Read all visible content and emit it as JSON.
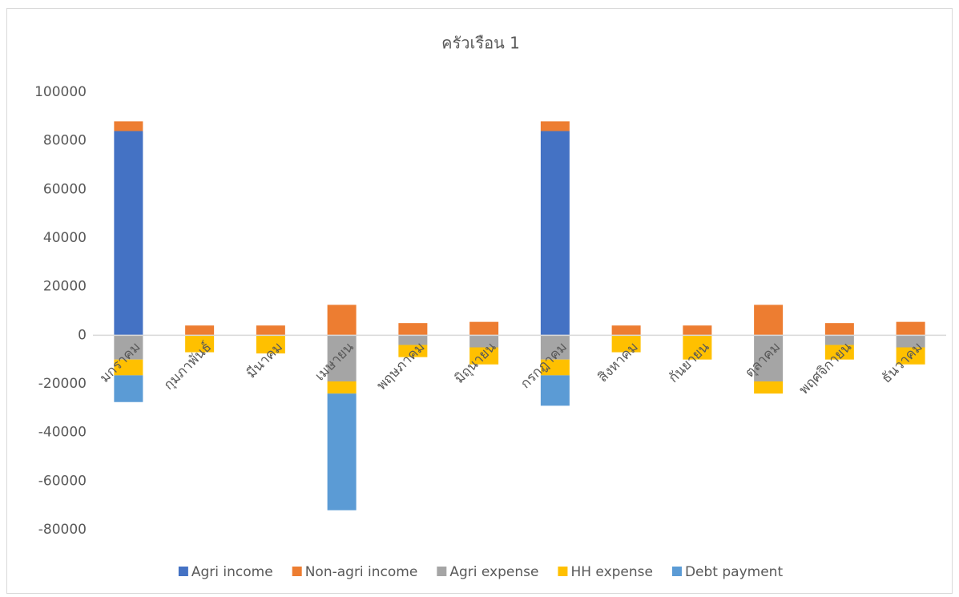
{
  "chart_data": {
    "type": "bar",
    "stacked": true,
    "title": "ครัวเรือน 1",
    "categories": [
      "มกราคม",
      "กุมภาพันธ์",
      "มีนาคม",
      "เมษายน",
      "พฤษภาคม",
      "มิถุนายน",
      "กรกฎาคม",
      "สิงหาคม",
      "กันยายน",
      "ตุลาคม",
      "พฤศจิกายน",
      "ธันวาคม"
    ],
    "series": [
      {
        "name": "Agri income",
        "color": "#4472c4",
        "values": [
          84000,
          0,
          0,
          0,
          0,
          0,
          84000,
          0,
          0,
          0,
          0,
          0
        ]
      },
      {
        "name": "Non-agri income",
        "color": "#ed7d31",
        "values": [
          4000,
          4000,
          4000,
          12500,
          5000,
          5500,
          4000,
          4000,
          4000,
          12500,
          5000,
          5500
        ]
      },
      {
        "name": "Agri expense",
        "color": "#a5a5a5",
        "values": [
          -10000,
          0,
          0,
          -19000,
          -4000,
          -5000,
          -10000,
          0,
          0,
          -19000,
          -4000,
          -5000
        ]
      },
      {
        "name": "HH expense",
        "color": "#ffc000",
        "values": [
          -6500,
          -7000,
          -7500,
          -5000,
          -5000,
          -7000,
          -6500,
          -7000,
          -10000,
          -5000,
          -6000,
          -7000
        ]
      },
      {
        "name": "Debt payment",
        "color": "#5b9bd5",
        "values": [
          -11000,
          0,
          0,
          -48000,
          0,
          0,
          -12500,
          0,
          0,
          0,
          0,
          0
        ]
      }
    ],
    "ylim": [
      -80000,
      100000
    ],
    "yticks": [
      -80000,
      -60000,
      -40000,
      -20000,
      0,
      20000,
      40000,
      60000,
      80000,
      100000
    ],
    "grid": false,
    "legend": "bottom"
  }
}
